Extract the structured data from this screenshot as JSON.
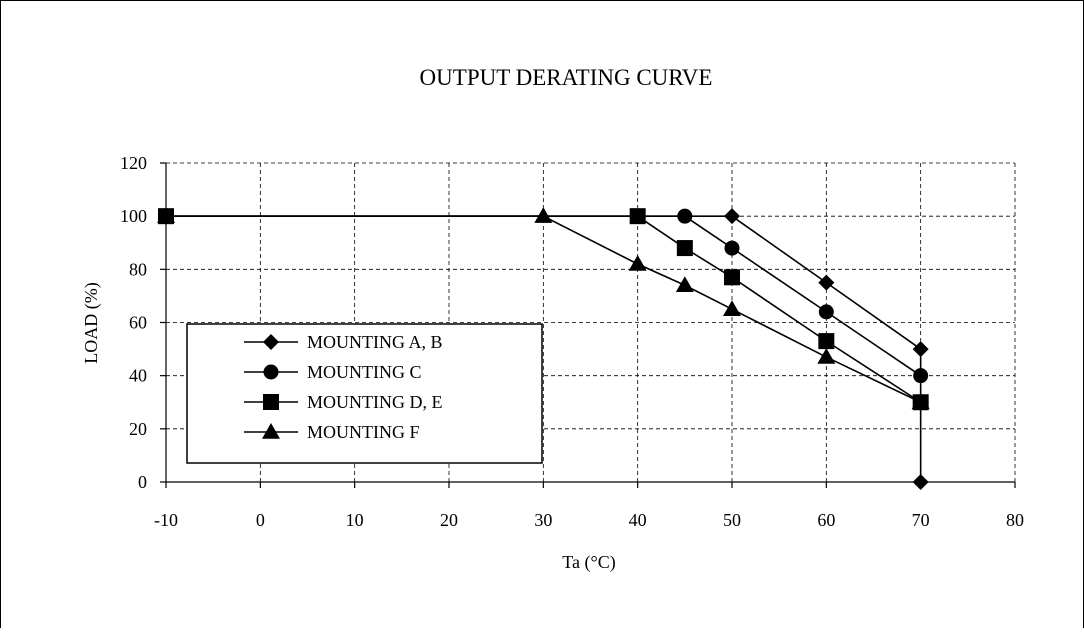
{
  "chart_data": {
    "type": "line",
    "title": "OUTPUT DERATING CURVE",
    "xlabel": "Ta (°C)",
    "ylabel": "LOAD (%)",
    "xlim": [
      -10,
      80
    ],
    "ylim": [
      0,
      120
    ],
    "x_ticks": [
      -10,
      0,
      10,
      20,
      30,
      40,
      50,
      60,
      70,
      80
    ],
    "y_ticks": [
      0,
      20,
      40,
      60,
      80,
      100,
      120
    ],
    "x_tick_labels": [
      "-10",
      "0",
      "10",
      "20",
      "30",
      "40",
      "50",
      "60",
      "70",
      "80"
    ],
    "y_tick_labels": [
      "0",
      "20",
      "40",
      "60",
      "80",
      "100",
      "120"
    ],
    "grid": true,
    "legend_position": "lower-left",
    "line_color": "#000000",
    "series": [
      {
        "name": "MOUNTING A, B",
        "marker": "diamond",
        "x": [
          -10,
          50,
          60,
          70,
          70
        ],
        "y": [
          100,
          100,
          75,
          50,
          0
        ]
      },
      {
        "name": "MOUNTING C",
        "marker": "circle",
        "x": [
          -10,
          45,
          50,
          60,
          70
        ],
        "y": [
          100,
          100,
          88,
          64,
          40
        ]
      },
      {
        "name": "MOUNTING D, E",
        "marker": "square",
        "x": [
          -10,
          40,
          45,
          50,
          60,
          70
        ],
        "y": [
          100,
          100,
          88,
          77,
          53,
          30
        ]
      },
      {
        "name": "MOUNTING F",
        "marker": "triangle",
        "x": [
          -10,
          30,
          40,
          45,
          50,
          60,
          70
        ],
        "y": [
          100,
          100,
          82,
          74,
          65,
          47,
          30
        ]
      }
    ]
  }
}
